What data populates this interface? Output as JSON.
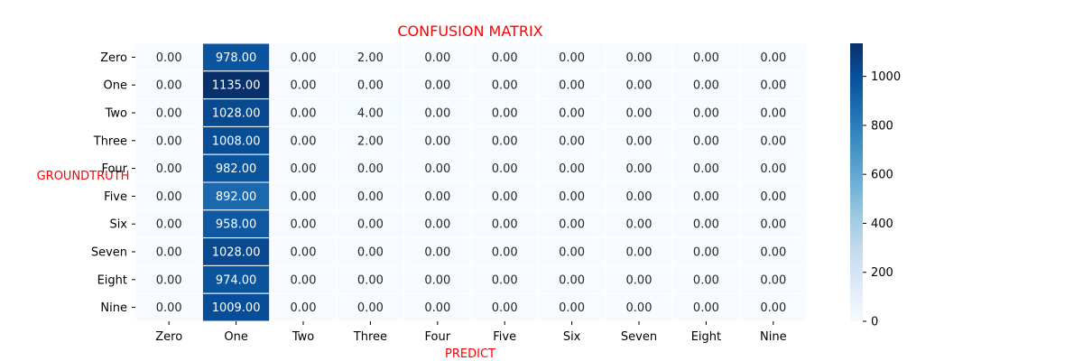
{
  "chart_data": {
    "type": "heatmap",
    "title": "CONFUSION MATRIX",
    "xlabel": "PREDICT",
    "ylabel": "GROUNDTRUTH",
    "x_categories": [
      "Zero",
      "One",
      "Two",
      "Three",
      "Four",
      "Five",
      "Six",
      "Seven",
      "Eight",
      "Nine"
    ],
    "y_categories": [
      "Zero",
      "One",
      "Two",
      "Three",
      "Four",
      "Five",
      "Six",
      "Seven",
      "Eight",
      "Nine"
    ],
    "values": [
      [
        0,
        978,
        0,
        2,
        0,
        0,
        0,
        0,
        0,
        0
      ],
      [
        0,
        1135,
        0,
        0,
        0,
        0,
        0,
        0,
        0,
        0
      ],
      [
        0,
        1028,
        0,
        4,
        0,
        0,
        0,
        0,
        0,
        0
      ],
      [
        0,
        1008,
        0,
        2,
        0,
        0,
        0,
        0,
        0,
        0
      ],
      [
        0,
        982,
        0,
        0,
        0,
        0,
        0,
        0,
        0,
        0
      ],
      [
        0,
        892,
        0,
        0,
        0,
        0,
        0,
        0,
        0,
        0
      ],
      [
        0,
        958,
        0,
        0,
        0,
        0,
        0,
        0,
        0,
        0
      ],
      [
        0,
        1028,
        0,
        0,
        0,
        0,
        0,
        0,
        0,
        0
      ],
      [
        0,
        974,
        0,
        0,
        0,
        0,
        0,
        0,
        0,
        0
      ],
      [
        0,
        1009,
        0,
        0,
        0,
        0,
        0,
        0,
        0,
        0
      ]
    ],
    "value_format_decimals": 2,
    "colormap": "Blues",
    "colormap_stops": [
      "#f7fbff",
      "#deebf7",
      "#c6dbef",
      "#9ecae1",
      "#6baed6",
      "#4292c6",
      "#2171b5",
      "#08519c",
      "#08306b"
    ],
    "colorbar": {
      "range": [
        0,
        1135
      ],
      "ticks": [
        0,
        200,
        400,
        600,
        800,
        1000
      ]
    },
    "title_color": "#ff0000",
    "label_color": "#ff0000",
    "grid": false
  }
}
